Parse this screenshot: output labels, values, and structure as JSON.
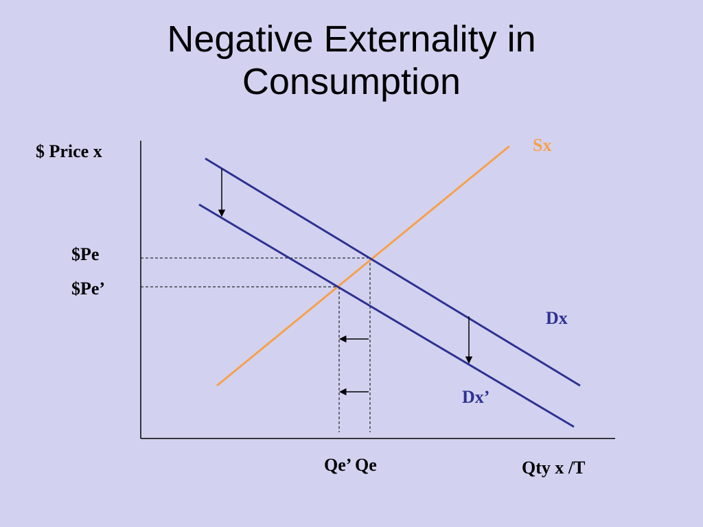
{
  "slide": {
    "title_line1": "Negative Externality in",
    "title_line2": "Consumption"
  },
  "diagram": {
    "y_axis_label": "$ Price x",
    "x_axis_label": "Qty x /T",
    "price_labels": {
      "pe": "$Pe",
      "pe_prime": "$Pe’"
    },
    "quantity_labels": "Qe’ Qe",
    "curve_labels": {
      "supply": "Sx",
      "demand": "Dx",
      "demand_shifted": "Dx’"
    },
    "colors": {
      "background": "#d2d2f0",
      "supply": "#f7a04b",
      "demand": "#2e3192",
      "axis": "#000000"
    }
  }
}
